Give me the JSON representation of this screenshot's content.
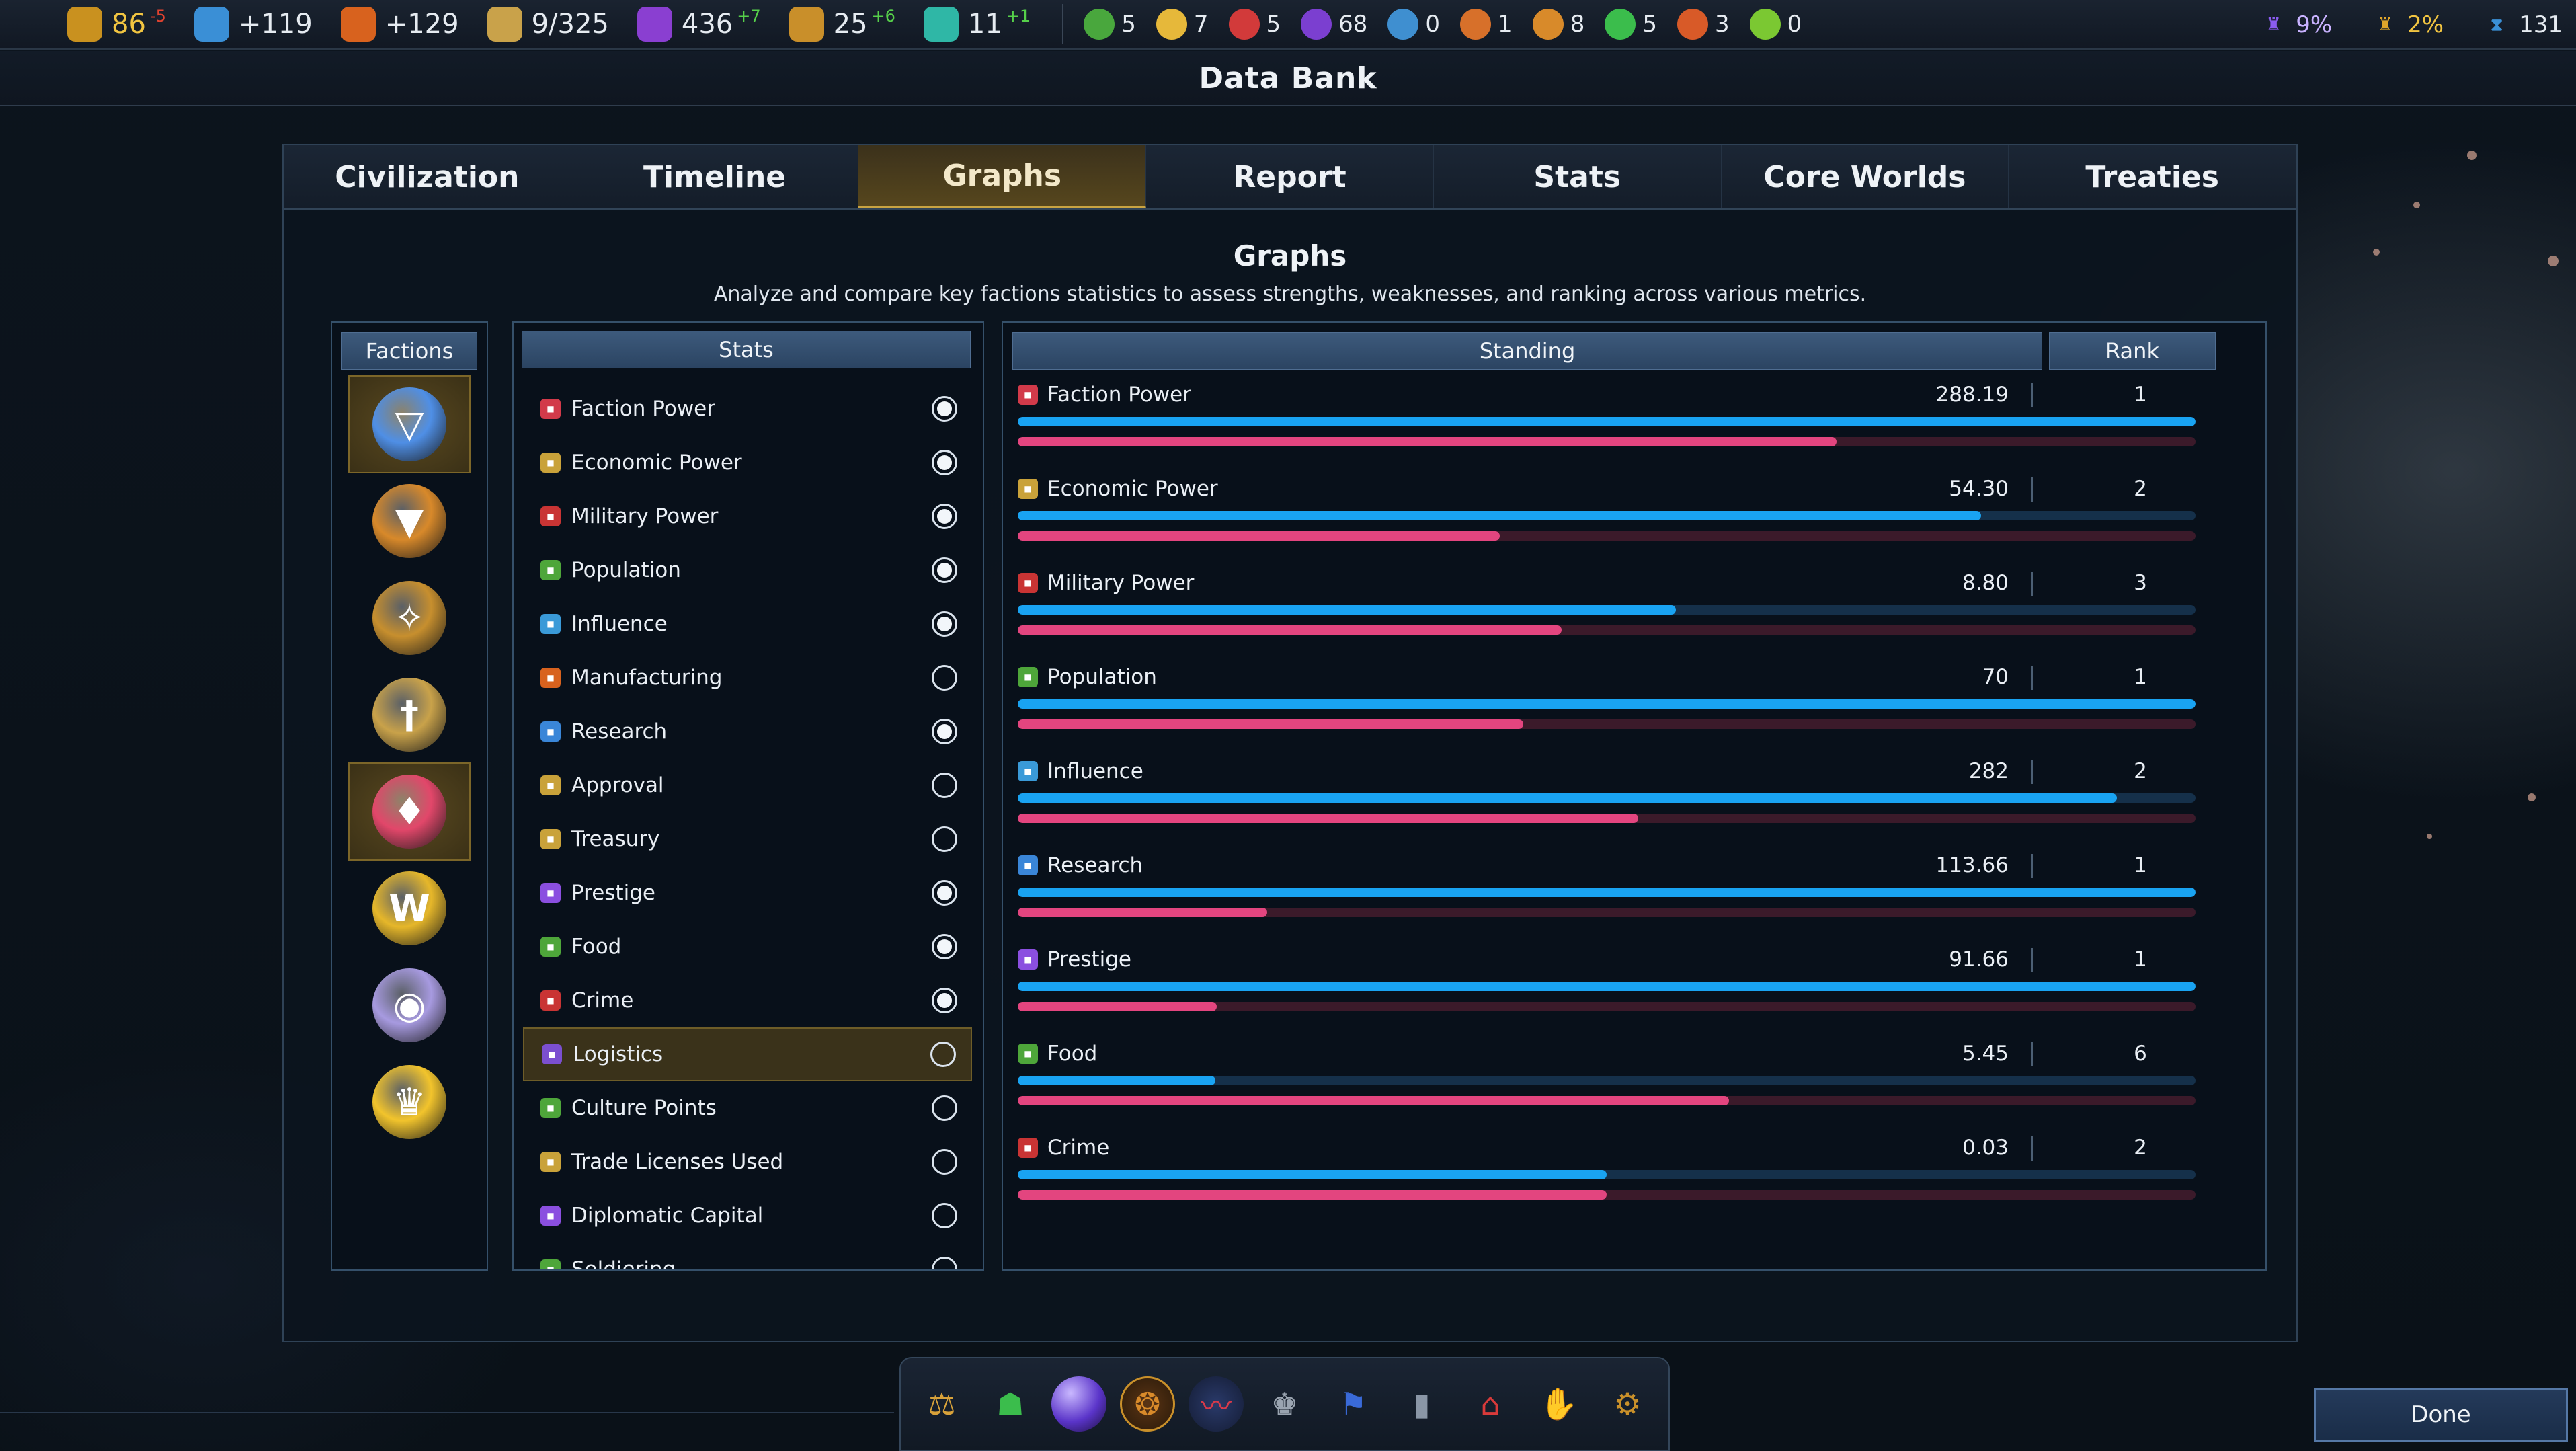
{
  "topbar": {
    "resources": [
      {
        "icon": "credits-icon",
        "color": "#c9911f",
        "value": "86",
        "delta": "-5",
        "delta_type": "neg",
        "value_color": "#f2c541"
      },
      {
        "icon": "science-flask-icon",
        "color": "#3a8fd6",
        "value": "+119"
      },
      {
        "icon": "hammer-icon",
        "color": "#d8621e",
        "value": "+129"
      },
      {
        "icon": "crate-icon",
        "color": "#c9a24a",
        "value": "9/325"
      },
      {
        "icon": "influence-icon",
        "color": "#8a3fd1",
        "value": "436",
        "delta": "+7",
        "delta_type": "pos"
      },
      {
        "icon": "scales-icon",
        "color": "#c98f2a",
        "value": "25",
        "delta": "+6",
        "delta_type": "pos"
      },
      {
        "icon": "building-icon",
        "color": "#2fb7a6",
        "value": "11",
        "delta": "+1",
        "delta_type": "pos"
      }
    ],
    "goods": [
      {
        "icon": "food-apple-icon",
        "color": "#49a73d",
        "value": "5"
      },
      {
        "icon": "gear-disc-icon",
        "color": "#e6b83a",
        "value": "7"
      },
      {
        "icon": "red-grid-icon",
        "color": "#d23a3a",
        "value": "5"
      },
      {
        "icon": "purple-swirl-icon",
        "color": "#7b3fd0",
        "value": "68"
      },
      {
        "icon": "atom-icon",
        "color": "#3f8fd0",
        "value": "0"
      },
      {
        "icon": "shield-icon",
        "color": "#d7702a",
        "value": "1"
      },
      {
        "icon": "sun-gear-icon",
        "color": "#d88a2a",
        "value": "8"
      },
      {
        "icon": "green-crystal-icon",
        "color": "#3bbd4c",
        "value": "5"
      },
      {
        "icon": "crossed-icon",
        "color": "#d85a28",
        "value": "3"
      },
      {
        "icon": "green-orb-icon",
        "color": "#7bc832",
        "value": "0"
      }
    ],
    "right": [
      {
        "icon": "trophy-purple-icon",
        "color": "#8b5cf0",
        "value": "9%"
      },
      {
        "icon": "trophy-gold-icon",
        "color": "#e0a52a",
        "value": "2%"
      },
      {
        "icon": "hourglass-icon",
        "color": "#3a8fd6",
        "value": "131"
      }
    ]
  },
  "window": {
    "title": "Data Bank"
  },
  "tabs": [
    "Civilization",
    "Timeline",
    "Graphs",
    "Report",
    "Stats",
    "Core Worlds",
    "Treaties"
  ],
  "active_tab": "Graphs",
  "graphs": {
    "title": "Graphs",
    "subtitle": "Analyze and compare key factions statistics to assess strengths, weaknesses, and ranking across various metrics."
  },
  "factions": {
    "header": "Factions",
    "items": [
      {
        "icon": "terran-faction-icon",
        "color": "#4f8fe6",
        "glyph": "▽",
        "selected": true
      },
      {
        "icon": "orange-triangle-faction-icon",
        "color": "#d8892a",
        "glyph": "▼",
        "selected": false
      },
      {
        "icon": "compass-faction-icon",
        "color": "#c78f2e",
        "glyph": "✧",
        "selected": false
      },
      {
        "icon": "blade-faction-icon",
        "color": "#c9a24a",
        "glyph": "†",
        "selected": false
      },
      {
        "icon": "crimson-flame-faction-icon",
        "color": "#e2476a",
        "glyph": "♦",
        "selected": true
      },
      {
        "icon": "gold-wings-faction-icon",
        "color": "#e6b72a",
        "glyph": "W",
        "selected": false
      },
      {
        "icon": "silver-orb-faction-icon",
        "color": "#a79ae0",
        "glyph": "◉",
        "selected": false
      },
      {
        "icon": "gold-crown-faction-icon",
        "color": "#f2c42c",
        "glyph": "♛",
        "selected": false
      }
    ]
  },
  "stats": {
    "header": "Stats",
    "items": [
      {
        "label": "Faction Power",
        "icon": "faction-power-icon",
        "color": "#d23a4a",
        "checked": true
      },
      {
        "label": "Economic Power",
        "icon": "economic-power-icon",
        "color": "#c9a23a",
        "checked": true
      },
      {
        "label": "Military Power",
        "icon": "military-power-icon",
        "color": "#c93434",
        "checked": true
      },
      {
        "label": "Population",
        "icon": "population-icon",
        "color": "#4ea63a",
        "checked": true
      },
      {
        "label": "Influence",
        "icon": "influence-flag-icon",
        "color": "#3a9ad8",
        "checked": true
      },
      {
        "label": "Manufacturing",
        "icon": "manufacturing-icon",
        "color": "#d8621e",
        "checked": false
      },
      {
        "label": "Research",
        "icon": "research-icon",
        "color": "#3a86d8",
        "checked": true
      },
      {
        "label": "Approval",
        "icon": "approval-icon",
        "color": "#c9a23a",
        "checked": false
      },
      {
        "label": "Treasury",
        "icon": "treasury-icon",
        "color": "#c9a23a",
        "checked": false
      },
      {
        "label": "Prestige",
        "icon": "prestige-icon",
        "color": "#8b4fe0",
        "checked": true
      },
      {
        "label": "Food",
        "icon": "food-icon",
        "color": "#4ea63a",
        "checked": true
      },
      {
        "label": "Crime",
        "icon": "crime-icon",
        "color": "#c93434",
        "checked": true
      },
      {
        "label": "Logistics",
        "icon": "logistics-icon",
        "color": "#7b4fd0",
        "checked": false,
        "highlight": true
      },
      {
        "label": "Culture Points",
        "icon": "culture-points-icon",
        "color": "#4ea63a",
        "checked": false
      },
      {
        "label": "Trade Licenses Used",
        "icon": "trade-licenses-icon",
        "color": "#c9a23a",
        "checked": false
      },
      {
        "label": "Diplomatic Capital",
        "icon": "diplomatic-capital-icon",
        "color": "#8b4fe0",
        "checked": false
      },
      {
        "label": "Soldiering",
        "icon": "soldiering-icon",
        "color": "#4ea63a",
        "checked": false
      }
    ]
  },
  "standing": {
    "header_standing": "Standing",
    "header_rank": "Rank",
    "rows": [
      {
        "label": "Faction Power",
        "icon": "faction-power-icon",
        "color": "#d23a4a",
        "value": "288.19",
        "rank": "1",
        "blue": 1.0,
        "pink": 0.695
      },
      {
        "label": "Economic Power",
        "icon": "economic-power-icon",
        "color": "#c9a23a",
        "value": "54.30",
        "rank": "2",
        "blue": 0.818,
        "pink": 0.409
      },
      {
        "label": "Military Power",
        "icon": "military-power-icon",
        "color": "#c93434",
        "value": "8.80",
        "rank": "3",
        "blue": 0.559,
        "pink": 0.462
      },
      {
        "label": "Population",
        "icon": "population-icon",
        "color": "#4ea63a",
        "value": "70",
        "rank": "1",
        "blue": 1.0,
        "pink": 0.429
      },
      {
        "label": "Influence",
        "icon": "influence-flag-icon",
        "color": "#3a9ad8",
        "value": "282",
        "rank": "2",
        "blue": 0.933,
        "pink": 0.527
      },
      {
        "label": "Research",
        "icon": "research-icon",
        "color": "#3a86d8",
        "value": "113.66",
        "rank": "1",
        "blue": 1.0,
        "pink": 0.212
      },
      {
        "label": "Prestige",
        "icon": "prestige-icon",
        "color": "#8b4fe0",
        "value": "91.66",
        "rank": "1",
        "blue": 1.0,
        "pink": 0.169
      },
      {
        "label": "Food",
        "icon": "food-icon",
        "color": "#4ea63a",
        "value": "5.45",
        "rank": "6",
        "blue": 0.168,
        "pink": 0.604
      },
      {
        "label": "Crime",
        "icon": "crime-icon",
        "color": "#c93434",
        "value": "0.03",
        "rank": "2",
        "blue": 0.5,
        "pink": 0.5
      }
    ]
  },
  "bottombar": {
    "icons": [
      {
        "icon": "scales-icon",
        "color": "#d8a23a",
        "glyph": "⚖"
      },
      {
        "icon": "leader-icon",
        "color": "#3bbd4c",
        "glyph": "☗"
      },
      {
        "icon": "planet-icon",
        "color": "#6a4fe0",
        "glyph": "●"
      },
      {
        "icon": "crest-icon",
        "color": "#d88a2a",
        "glyph": "❂"
      },
      {
        "icon": "economy-graph-icon",
        "color": "#d83a4a",
        "glyph": "〰"
      },
      {
        "icon": "trophy-icon",
        "color": "#9aa4b0",
        "glyph": "♚"
      },
      {
        "icon": "flag-icon",
        "color": "#3a6ad8",
        "glyph": "⚑"
      },
      {
        "icon": "pillar-icon",
        "color": "#8a96a6",
        "glyph": "▮"
      },
      {
        "icon": "temple-icon",
        "color": "#d83a3a",
        "glyph": "⌂"
      },
      {
        "icon": "handshake-icon",
        "color": "#d8a23a",
        "glyph": "✋"
      },
      {
        "icon": "council-gear-icon",
        "color": "#c9902a",
        "glyph": "⚙"
      }
    ]
  },
  "done_label": "Done"
}
